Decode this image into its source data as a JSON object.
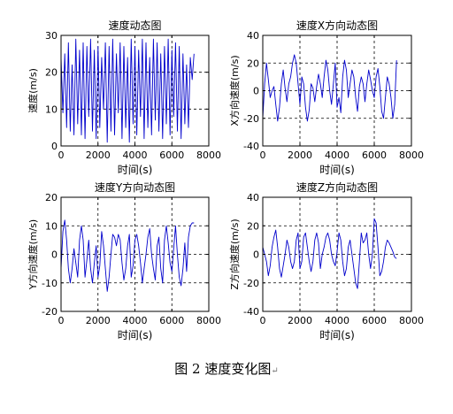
{
  "figure_caption": "图 2  速度变化图",
  "caption_return_mark": "↵",
  "chart_data": [
    {
      "type": "line",
      "title": "速度动态图",
      "xlabel": "时间(s)",
      "ylabel": "速度(m/s)",
      "xlim": [
        0,
        8000
      ],
      "ylim": [
        0,
        30
      ],
      "xticks": [
        0,
        2000,
        4000,
        6000,
        8000
      ],
      "yticks": [
        0,
        10,
        20,
        30
      ],
      "grid": true,
      "line_color": "#0000cc",
      "series": [
        {
          "x": [
            0,
            100,
            200,
            300,
            400,
            500,
            600,
            700,
            800,
            900,
            1000,
            1100,
            1200,
            1300,
            1400,
            1500,
            1600,
            1700,
            1800,
            1900,
            2000,
            2100,
            2200,
            2300,
            2400,
            2500,
            2600,
            2700,
            2800,
            2900,
            3000,
            3100,
            3200,
            3300,
            3400,
            3500,
            3600,
            3700,
            3800,
            3900,
            4000,
            4100,
            4200,
            4300,
            4400,
            4500,
            4600,
            4700,
            4800,
            4900,
            5000,
            5100,
            5200,
            5300,
            5400,
            5500,
            5600,
            5700,
            5800,
            5900,
            6000,
            6100,
            6200,
            6300,
            6400,
            6500,
            6600,
            6700,
            6800,
            6900,
            7000,
            7100,
            7200
          ],
          "y": [
            24,
            9,
            25,
            5,
            28,
            4,
            22,
            3,
            29,
            6,
            26,
            3,
            28,
            2,
            27,
            8,
            29,
            4,
            26,
            2,
            27,
            5,
            24,
            10,
            28,
            1,
            27,
            4,
            29,
            3,
            25,
            9,
            28,
            2,
            27,
            5,
            24,
            1,
            29,
            6,
            27,
            3,
            26,
            8,
            29,
            2,
            28,
            5,
            24,
            3,
            29,
            7,
            28,
            4,
            25,
            2,
            27,
            6,
            29,
            3,
            26,
            8,
            28,
            4,
            27,
            2,
            25,
            6,
            22,
            5,
            24,
            18,
            25
          ]
        }
      ]
    },
    {
      "type": "line",
      "title": "速度X方向动态图",
      "xlabel": "时间(s)",
      "ylabel": "X方向速度(m/s)",
      "xlim": [
        0,
        8000
      ],
      "ylim": [
        -40,
        40
      ],
      "xticks": [
        0,
        2000,
        4000,
        6000,
        8000
      ],
      "yticks": [
        -40,
        -20,
        0,
        20,
        40
      ],
      "grid": true,
      "line_color": "#0000cc",
      "series": [
        {
          "x": [
            0,
            100,
            200,
            300,
            400,
            500,
            600,
            700,
            800,
            900,
            1000,
            1100,
            1200,
            1300,
            1400,
            1500,
            1600,
            1700,
            1800,
            1900,
            2000,
            2100,
            2200,
            2300,
            2400,
            2500,
            2600,
            2700,
            2800,
            2900,
            3000,
            3100,
            3200,
            3300,
            3400,
            3500,
            3600,
            3700,
            3800,
            3900,
            4000,
            4100,
            4200,
            4300,
            4400,
            4500,
            4600,
            4700,
            4800,
            4900,
            5000,
            5100,
            5200,
            5300,
            5400,
            5500,
            5600,
            5700,
            5800,
            5900,
            6000,
            6100,
            6200,
            6300,
            6400,
            6500,
            6600,
            6700,
            6800,
            6900,
            7000,
            7100,
            7200
          ],
          "y": [
            -20,
            5,
            20,
            8,
            -5,
            0,
            3,
            -10,
            -22,
            -12,
            5,
            15,
            2,
            -8,
            5,
            10,
            20,
            26,
            20,
            5,
            -10,
            10,
            5,
            -12,
            -22,
            -14,
            5,
            2,
            -8,
            3,
            12,
            5,
            -5,
            10,
            22,
            15,
            0,
            -10,
            5,
            20,
            -12,
            -5,
            -16,
            10,
            22,
            15,
            -5,
            5,
            15,
            10,
            -5,
            -15,
            3,
            10,
            5,
            -8,
            5,
            15,
            8,
            0,
            -5,
            10,
            16,
            3,
            -15,
            -20,
            -5,
            10,
            5,
            -5,
            -20,
            -10,
            22
          ]
        }
      ]
    },
    {
      "type": "line",
      "title": "速度Y方向动态图",
      "xlabel": "时间(s)",
      "ylabel": "Y方向速度(m/s)",
      "xlim": [
        0,
        8000
      ],
      "ylim": [
        -20,
        20
      ],
      "xticks": [
        0,
        2000,
        4000,
        6000,
        8000
      ],
      "yticks": [
        -20,
        -10,
        0,
        10,
        20
      ],
      "grid": true,
      "line_color": "#0000cc",
      "series": [
        {
          "x": [
            0,
            100,
            200,
            300,
            400,
            500,
            600,
            700,
            800,
            900,
            1000,
            1100,
            1200,
            1300,
            1400,
            1500,
            1600,
            1700,
            1800,
            1900,
            2000,
            2100,
            2200,
            2300,
            2400,
            2500,
            2600,
            2700,
            2800,
            2900,
            3000,
            3100,
            3200,
            3300,
            3400,
            3500,
            3600,
            3700,
            3800,
            3900,
            4000,
            4100,
            4200,
            4300,
            4400,
            4500,
            4600,
            4700,
            4800,
            4900,
            5000,
            5100,
            5200,
            5300,
            5400,
            5500,
            5600,
            5700,
            5800,
            5900,
            6000,
            6100,
            6200,
            6300,
            6400,
            6500,
            6600,
            6700,
            6800,
            6900,
            7000,
            7100,
            7200
          ],
          "y": [
            -5,
            8,
            12,
            5,
            -5,
            -10,
            -5,
            2,
            -3,
            -8,
            5,
            10,
            5,
            -8,
            -2,
            5,
            -5,
            -10,
            -3,
            3,
            -8,
            -4,
            8,
            3,
            -5,
            -13,
            -8,
            0,
            7,
            6,
            3,
            7,
            5,
            -3,
            -9,
            -5,
            3,
            7,
            -8,
            -4,
            5,
            7,
            3,
            -3,
            -10,
            -5,
            0,
            6,
            9,
            0,
            -5,
            -9,
            3,
            6,
            -5,
            -10,
            5,
            10,
            4,
            -3,
            -6,
            2,
            10,
            0,
            -8,
            -11,
            -5,
            4,
            -6,
            6,
            10,
            11,
            11
          ]
        }
      ]
    },
    {
      "type": "line",
      "title": "速度Z方向动态图",
      "xlabel": "时间(s)",
      "ylabel": "Z方向速度(m/s)",
      "xlim": [
        0,
        8000
      ],
      "ylim": [
        -40,
        40
      ],
      "xticks": [
        0,
        2000,
        4000,
        6000,
        8000
      ],
      "yticks": [
        -40,
        -20,
        0,
        20,
        40
      ],
      "grid": true,
      "line_color": "#0000cc",
      "series": [
        {
          "x": [
            0,
            100,
            200,
            300,
            400,
            500,
            600,
            700,
            800,
            900,
            1000,
            1100,
            1200,
            1300,
            1400,
            1500,
            1600,
            1700,
            1800,
            1900,
            2000,
            2100,
            2200,
            2300,
            2400,
            2500,
            2600,
            2700,
            2800,
            2900,
            3000,
            3100,
            3200,
            3300,
            3400,
            3500,
            3600,
            3700,
            3800,
            3900,
            4000,
            4100,
            4200,
            4300,
            4400,
            4500,
            4600,
            4700,
            4800,
            4900,
            5000,
            5100,
            5200,
            5300,
            5400,
            5500,
            5600,
            5700,
            5800,
            5900,
            6000,
            6100,
            6200,
            6300,
            6400,
            6500,
            6600,
            6700,
            6800,
            6900,
            7000,
            7100,
            7200
          ],
          "y": [
            5,
            0,
            -5,
            -15,
            -8,
            5,
            12,
            17,
            5,
            -10,
            -16,
            -8,
            0,
            10,
            5,
            -5,
            -10,
            -5,
            10,
            15,
            -10,
            -5,
            12,
            15,
            5,
            -5,
            -12,
            -5,
            10,
            15,
            8,
            -10,
            0,
            5,
            12,
            15,
            10,
            0,
            -5,
            -8,
            2,
            15,
            10,
            -5,
            -15,
            -10,
            5,
            10,
            0,
            -10,
            -20,
            -24,
            -5,
            15,
            8,
            10,
            15,
            0,
            -10,
            0,
            25,
            22,
            5,
            -15,
            -12,
            -5,
            5,
            10,
            8,
            5,
            2,
            -2,
            -3
          ]
        }
      ]
    }
  ]
}
